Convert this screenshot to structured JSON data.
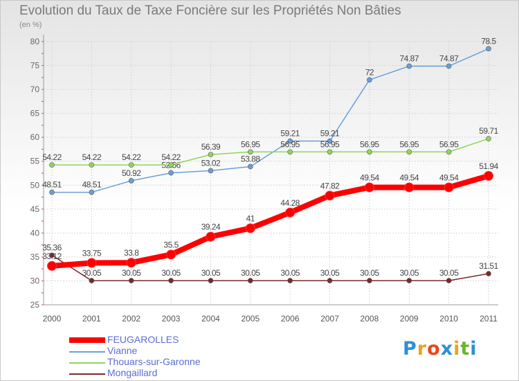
{
  "chart_data": {
    "type": "line",
    "title": "Evolution du Taux de Taxe Foncière sur les Propriétés Non Bâties",
    "ylabel": "(en %)",
    "xlabel": "",
    "ylim": [
      25,
      80
    ],
    "yticks": [
      25,
      30,
      35,
      40,
      45,
      50,
      55,
      60,
      65,
      70,
      75,
      80
    ],
    "x": [
      "2000",
      "2001",
      "2002",
      "2003",
      "2004",
      "2005",
      "2006",
      "2007",
      "2008",
      "2009",
      "2010",
      "2011"
    ],
    "grid": true,
    "legend": "bottom-left",
    "series": [
      {
        "name": "Vianne",
        "color": "#6a9fd8",
        "values": [
          48.51,
          48.51,
          50.92,
          52.56,
          53.02,
          53.88,
          59.21,
          59.21,
          72,
          74.87,
          74.87,
          78.5
        ],
        "labels": [
          "48.51",
          "48.51",
          "50.92",
          "52.56",
          "53.02",
          "53.88",
          "59.21",
          "59.21",
          "72",
          "74.87",
          "74.87",
          "78.5"
        ]
      },
      {
        "name": "Thouars-sur-Garonne",
        "color": "#8fd65a",
        "values": [
          54.22,
          54.22,
          54.22,
          54.22,
          56.39,
          56.95,
          56.95,
          56.95,
          56.95,
          56.95,
          56.95,
          59.71
        ],
        "labels": [
          "54.22",
          "54.22",
          "54.22",
          "54.22",
          "56.39",
          "56.95",
          "56.95",
          "56.95",
          "56.95",
          "56.95",
          "56.95",
          "59.71"
        ]
      },
      {
        "name": "Mongaillard",
        "color": "#7a2a2a",
        "values": [
          35.36,
          30.05,
          30.05,
          30.05,
          30.05,
          30.05,
          30.05,
          30.05,
          30.05,
          30.05,
          30.05,
          31.51
        ],
        "labels": [
          "35.36",
          "30.05",
          "30.05",
          "30.05",
          "30.05",
          "30.05",
          "30.05",
          "30.05",
          "30.05",
          "30.05",
          "30.05",
          "31.51"
        ]
      },
      {
        "name": "FEUGAROLLES",
        "color": "#ff0000",
        "values": [
          33.12,
          33.75,
          33.8,
          35.5,
          39.24,
          41,
          44.28,
          47.82,
          49.54,
          49.54,
          49.54,
          51.94
        ],
        "labels": [
          "33.12",
          "33.75",
          "33.8",
          "35.5",
          "39.24",
          "41",
          "44.28",
          "47.82",
          "49.54",
          "49.54",
          "49.54",
          "51.94"
        ]
      }
    ]
  },
  "legend": {
    "items": [
      {
        "label": "FEUGAROLLES",
        "color": "#ff0000"
      },
      {
        "label": "Vianne",
        "color": "#6a9fd8"
      },
      {
        "label": "Thouars-sur-Garonne",
        "color": "#8fd65a"
      },
      {
        "label": "Mongaillard",
        "color": "#7a2a2a"
      }
    ]
  },
  "logo": {
    "letters": [
      "P",
      "r",
      "o",
      "x",
      "i",
      "t",
      "i"
    ],
    "colors": [
      "#2f8fd6",
      "#f0a21c",
      "#e8471c",
      "#2f8fd6",
      "#f0a21c",
      "#69b52b",
      "#2f8fd6"
    ]
  }
}
